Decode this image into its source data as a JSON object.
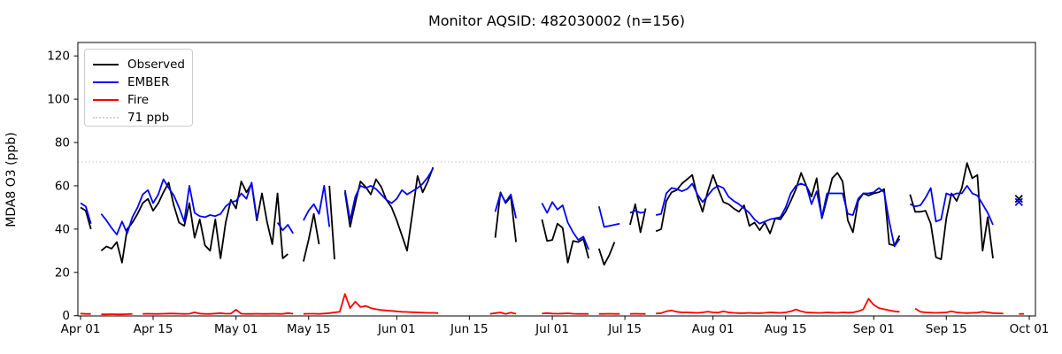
{
  "chart_data": {
    "type": "line",
    "title": "Monitor AQSID: 482030002 (n=156)",
    "ylabel": "MDA8 O3 (ppb)",
    "xlabel": "",
    "x_unit": "days since Apr 01",
    "ylim": [
      -1,
      126.5
    ],
    "grid": false,
    "yticks": [
      0,
      20,
      40,
      60,
      80,
      100,
      120
    ],
    "xticks": {
      "days": [
        0,
        14,
        30,
        44,
        61,
        75,
        91,
        105,
        122,
        136,
        153,
        167,
        183
      ],
      "labels": [
        "Apr 01",
        "Apr 15",
        "May 01",
        "May 15",
        "Jun 01",
        "Jun 15",
        "Jul 01",
        "Jul 15",
        "Aug 01",
        "Aug 15",
        "Sep 01",
        "Sep 15",
        "Oct 01"
      ]
    },
    "threshold": {
      "value": 71,
      "label": "71 ppb",
      "color": "#d3d3d3",
      "style": "dotted"
    },
    "legend": {
      "position": "upper-left",
      "entries": [
        "Observed",
        "EMBER",
        "Fire",
        "71 ppb"
      ]
    },
    "series": [
      {
        "name": "Observed",
        "color": "#000000",
        "values": [
          50,
          48.5,
          40,
          null,
          30,
          32,
          31,
          34,
          24.5,
          40,
          43,
          47,
          52,
          54,
          48.5,
          52,
          57,
          61.5,
          51,
          43,
          41.5,
          52,
          36,
          44.5,
          32.5,
          30,
          44.5,
          26.5,
          43,
          53.5,
          49.5,
          62,
          57,
          61,
          44,
          56.5,
          43,
          33,
          56.5,
          26.5,
          28.5,
          null,
          null,
          25,
          35,
          47,
          33,
          null,
          60,
          26,
          null,
          57,
          41,
          52,
          62,
          59.5,
          56,
          63,
          59.5,
          53.5,
          50,
          44,
          37,
          30,
          47,
          64.5,
          57,
          62,
          68.5,
          null,
          null,
          null,
          null,
          null,
          null,
          null,
          null,
          null,
          null,
          null,
          36,
          57,
          52,
          55,
          34,
          null,
          null,
          null,
          null,
          44.5,
          34.5,
          35,
          42.5,
          40.5,
          24.5,
          34.5,
          34,
          35.5,
          26.5,
          null,
          31,
          23.5,
          28,
          34,
          null,
          null,
          42,
          51.5,
          38.5,
          49.5,
          null,
          39,
          40,
          53,
          57,
          58,
          61,
          63,
          65,
          55,
          48,
          57.5,
          65,
          58.5,
          52.5,
          51.5,
          49.5,
          48,
          51,
          41.5,
          43,
          39.5,
          43,
          38,
          45,
          44.5,
          48,
          53,
          58.5,
          66,
          60,
          55,
          63.5,
          45,
          54,
          63.5,
          66,
          62,
          44,
          38.5,
          53,
          56.5,
          55.5,
          56.5,
          57,
          58.5,
          33,
          32.5,
          37,
          null,
          56,
          48,
          48,
          48.5,
          42.5,
          27,
          26,
          45,
          56.5,
          53,
          59,
          70.5,
          63.5,
          65,
          30,
          45.5,
          26.5,
          null,
          null,
          null,
          null,
          null,
          null
        ]
      },
      {
        "name": "EMBER",
        "color": "#0000ff",
        "values": [
          52,
          50.5,
          42.5,
          null,
          47,
          44,
          40.5,
          37.5,
          43.5,
          38,
          45.5,
          50,
          56,
          58,
          52,
          56,
          63,
          59,
          55.5,
          50,
          43.5,
          60,
          47.5,
          46,
          45.5,
          46.5,
          46,
          47,
          50.5,
          52.5,
          53,
          56.5,
          54,
          61.5,
          45,
          null,
          null,
          null,
          43,
          39.5,
          42,
          38,
          null,
          44,
          48.5,
          51.5,
          47,
          60,
          41,
          null,
          null,
          58,
          44,
          55,
          60,
          59,
          60,
          58.5,
          56,
          53.5,
          52,
          54,
          58,
          56,
          57.5,
          59,
          61,
          64,
          68,
          null,
          null,
          null,
          null,
          null,
          null,
          null,
          null,
          null,
          null,
          null,
          48,
          56.5,
          52.5,
          56,
          45,
          null,
          null,
          null,
          null,
          52,
          47.5,
          52.5,
          49,
          51,
          43,
          38.5,
          35,
          36.5,
          30.5,
          null,
          50.5,
          41,
          41.5,
          42,
          42.5,
          null,
          47.5,
          48.5,
          47.5,
          48,
          null,
          46.5,
          47,
          56.5,
          59,
          58.5,
          57.5,
          58.5,
          61,
          56,
          52.5,
          55.5,
          58.5,
          60,
          59,
          55,
          53,
          51.5,
          49.5,
          47.5,
          44.5,
          42.5,
          43.5,
          44.5,
          45,
          45.5,
          50,
          56.5,
          60,
          61,
          60,
          51.5,
          57.5,
          45.5,
          56.5,
          56.5,
          56.5,
          56.5,
          47,
          46.5,
          54,
          56.5,
          56.5,
          57,
          59,
          57,
          43.5,
          32,
          35.5,
          null,
          51.5,
          50.5,
          51,
          54.5,
          59,
          43.5,
          44.5,
          56.5,
          55.5,
          56.5,
          56.5,
          60,
          56.5,
          55.5,
          51.5,
          47.5,
          42,
          null,
          null,
          null,
          null,
          null,
          null
        ]
      },
      {
        "name": "Fire",
        "color": "#ff0000",
        "values": [
          1,
          0.8,
          0.8,
          null,
          0.6,
          0.6,
          0.7,
          0.6,
          0.6,
          0.7,
          0.8,
          null,
          0.8,
          0.9,
          0.8,
          0.8,
          0.9,
          1,
          1,
          0.9,
          0.8,
          0.9,
          1.5,
          1,
          0.8,
          0.8,
          1,
          1.2,
          0.9,
          1,
          2.8,
          0.9,
          0.8,
          0.8,
          0.9,
          0.8,
          0.8,
          0.9,
          0.8,
          0.8,
          1.2,
          0.9,
          null,
          0.8,
          0.9,
          0.9,
          0.8,
          1,
          1.2,
          1.5,
          1.8,
          10,
          3.5,
          6.5,
          4,
          4.5,
          3.5,
          3,
          2.6,
          2.4,
          2.2,
          2,
          1.8,
          1.7,
          1.6,
          1.5,
          1.4,
          1.3,
          1.3,
          1.2,
          null,
          null,
          null,
          null,
          null,
          null,
          null,
          null,
          null,
          0.8,
          1.2,
          1.5,
          0.8,
          1.4,
          0.9,
          null,
          null,
          null,
          null,
          1,
          1.2,
          1,
          0.9,
          1,
          1.1,
          0.9,
          0.8,
          0.8,
          0.8,
          null,
          0.8,
          0.8,
          0.9,
          0.8,
          0.8,
          null,
          0.8,
          0.9,
          0.8,
          0.8,
          null,
          1,
          1.2,
          2,
          2.4,
          1.8,
          1.5,
          1.5,
          1.4,
          1.3,
          1.5,
          1.9,
          1.5,
          1.4,
          2,
          1.5,
          1.3,
          1.2,
          1.2,
          1.3,
          1.2,
          1.2,
          1.3,
          1.5,
          1.4,
          1.3,
          1.5,
          2,
          2.9,
          2,
          1.5,
          1.4,
          1.3,
          1.3,
          1.5,
          1.4,
          1.3,
          1.5,
          1.4,
          1.5,
          2,
          3,
          7.8,
          5,
          3.5,
          3,
          2.5,
          2,
          1.8,
          null,
          null,
          3.3,
          1.8,
          1.5,
          1.4,
          1.3,
          1.4,
          1.5,
          2,
          1.5,
          1.3,
          1.2,
          1.3,
          1.4,
          1.8,
          1.5,
          1.2,
          1.1,
          1,
          null,
          null,
          0.8,
          0.8
        ]
      }
    ],
    "isolated_markers": [
      {
        "series": "Observed",
        "day": 181,
        "value": 54,
        "marker": "x",
        "color": "#000000"
      },
      {
        "series": "EMBER",
        "day": 181,
        "value": 52.5,
        "marker": "x",
        "color": "#0000ff"
      }
    ]
  }
}
